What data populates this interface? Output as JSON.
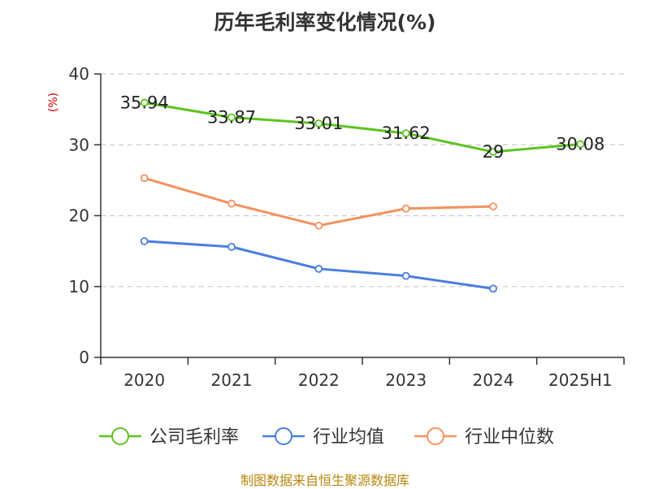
{
  "chart_data": {
    "type": "line",
    "title": "历年毛利率变化情况(%)",
    "ylabel": "(%)",
    "categories": [
      "2020",
      "2021",
      "2022",
      "2023",
      "2024",
      "2025H1"
    ],
    "yticks": [
      "0",
      "10",
      "20",
      "30",
      "40"
    ],
    "ylim": [
      0,
      40
    ],
    "grid": true,
    "legend_position": "bottom",
    "series": [
      {
        "name": "公司毛利率",
        "color": "#5cc41f",
        "values": [
          35.94,
          33.87,
          33.01,
          31.62,
          29,
          30.08
        ],
        "labels": [
          "35.94",
          "33.87",
          "33.01",
          "31.62",
          "29",
          "30.08"
        ]
      },
      {
        "name": "行业均值",
        "color": "#4a7fdc",
        "values": [
          16.4,
          15.6,
          12.5,
          11.5,
          9.7,
          null
        ]
      },
      {
        "name": "行业中位数",
        "color": "#f4915f",
        "values": [
          25.3,
          21.7,
          18.6,
          21.0,
          21.3,
          null
        ]
      }
    ]
  },
  "footer": {
    "source": "制图数据来自恒生聚源数据库"
  }
}
